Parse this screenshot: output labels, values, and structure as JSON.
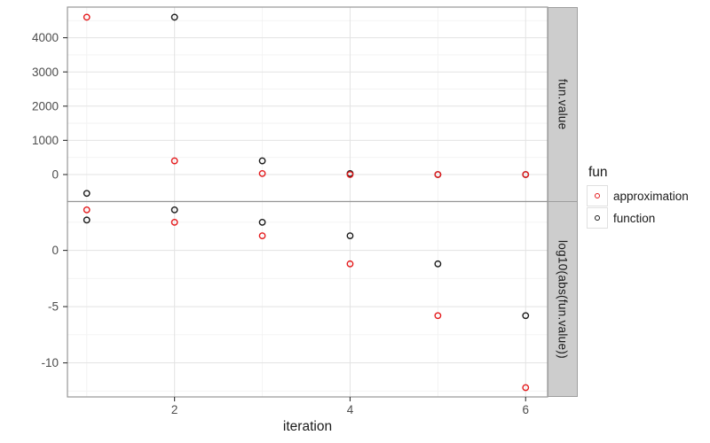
{
  "chart_data": {
    "type": "scatter",
    "xlabel": "iteration",
    "x": [
      1,
      2,
      3,
      4,
      5,
      6
    ],
    "xlim": [
      0.78,
      6.25
    ],
    "x_major_ticks": [
      {
        "value": 2,
        "label": "2"
      },
      {
        "value": 4,
        "label": "4"
      },
      {
        "value": 6,
        "label": "6"
      }
    ],
    "x_minor_gridlines": [
      1,
      3,
      5
    ],
    "legend": {
      "title": "fun",
      "position": "right",
      "entries": [
        {
          "label": "approximation",
          "color": "#E41A1C",
          "marker": "open-circle"
        },
        {
          "label": "function",
          "color": "#1A1A1A",
          "marker": "open-circle"
        }
      ]
    },
    "facets": [
      {
        "label": "fun.value",
        "ylim": [
          -790,
          4896
        ],
        "y_major_ticks": [
          {
            "value": 0,
            "label": "0"
          },
          {
            "value": 1000,
            "label": "1000"
          },
          {
            "value": 2000,
            "label": "2000"
          },
          {
            "value": 3000,
            "label": "3000"
          },
          {
            "value": 4000,
            "label": "4000"
          }
        ],
        "y_minor_gridlines": [
          500,
          1500,
          2500,
          3500,
          4500
        ],
        "series": [
          {
            "name": "approximation",
            "color": "#E41A1C",
            "values": [
              4600,
              400,
              30,
              0,
              0,
              0
            ]
          },
          {
            "name": "function",
            "color": "#1A1A1A",
            "values": [
              -550,
              4600,
              400,
              30,
              0,
              0
            ]
          }
        ]
      },
      {
        "label": "log10(abs(fun.value))",
        "ylim": [
          -13.03,
          4.34
        ],
        "y_major_ticks": [
          {
            "value": 0,
            "label": "0"
          },
          {
            "value": -5,
            "label": "-5"
          },
          {
            "value": -10,
            "label": "-10"
          }
        ],
        "y_minor_gridlines": [
          2.5,
          -2.5,
          -7.5,
          -12.5
        ],
        "series": [
          {
            "name": "approximation",
            "color": "#E41A1C",
            "values": [
              3.6,
              2.5,
              1.3,
              -1.2,
              -5.8,
              -12.2
            ]
          },
          {
            "name": "function",
            "color": "#1A1A1A",
            "values": [
              2.7,
              3.6,
              2.5,
              1.3,
              -1.2,
              -5.8
            ]
          }
        ]
      }
    ],
    "grid": true,
    "theme": {
      "background": "#FFFFFF",
      "panel_border": "#969696",
      "grid_major": "#E3E3E3",
      "grid_minor": "#F2F2F2",
      "strip_fill": "#CDCDCD",
      "strip_border": "#9E9E9E",
      "axis_text": "#4D4D4D",
      "tick_mark": "#333333",
      "text": "#1A1A1A"
    }
  }
}
